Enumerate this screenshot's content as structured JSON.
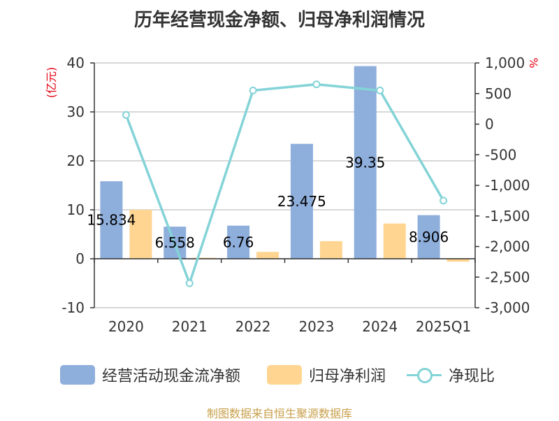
{
  "title": "历年经营现金净额、归母净利润情况",
  "unit_left": "(亿元)",
  "unit_right": "%",
  "source": "制图数据来自恒生聚源数据库",
  "colors": {
    "operating_cash": "#8eaedc",
    "net_profit": "#ffd591",
    "ratio": "#83d3d7",
    "axis": "#333333",
    "grid": "#cccccc",
    "unit": "#e60012",
    "source": "#c8a04b"
  },
  "legend": [
    {
      "label": "经营活动现金流净额",
      "kind": "bar",
      "color_key": "operating_cash"
    },
    {
      "label": "归母净利润",
      "kind": "bar",
      "color_key": "net_profit"
    },
    {
      "label": "净现比",
      "kind": "line",
      "color_key": "ratio"
    }
  ],
  "chart_data": {
    "type": "bar",
    "title": "历年经营现金净额、归母净利润情况",
    "categories": [
      "2020",
      "2021",
      "2022",
      "2023",
      "2024",
      "2025Q1"
    ],
    "y_left": {
      "label": "(亿元)",
      "ylim": [
        -10,
        40
      ],
      "ticks": [
        -10,
        0,
        10,
        20,
        30,
        40
      ],
      "tick_labels": [
        "-10",
        "0",
        "10",
        "20",
        "30",
        "40"
      ]
    },
    "y_right": {
      "label": "%",
      "ylim": [
        -3000,
        1000
      ],
      "ticks": [
        1000,
        500,
        0,
        -500,
        -1000,
        -1500,
        -2000,
        -2500,
        -3000
      ],
      "tick_labels": [
        "1,000",
        "500",
        "0",
        "-500",
        "-1,000",
        "-1,500",
        "-2,000",
        "-2,500",
        "-3,000"
      ]
    },
    "grid": true,
    "legend_position": "bottom",
    "series": [
      {
        "name": "经营活动现金流净额",
        "type": "bar",
        "axis": "left",
        "values": [
          15.834,
          6.558,
          6.76,
          23.475,
          39.35,
          8.906
        ],
        "labels": [
          "15.834",
          "6.558",
          "6.76",
          "23.475",
          "39.35",
          "8.906"
        ]
      },
      {
        "name": "归母净利润",
        "type": "bar",
        "axis": "left",
        "values": [
          10.0,
          0.2,
          1.4,
          3.6,
          7.2,
          -0.6
        ]
      },
      {
        "name": "净现比",
        "type": "line",
        "axis": "right",
        "values": [
          150,
          -2600,
          550,
          650,
          550,
          -1250
        ]
      }
    ]
  }
}
